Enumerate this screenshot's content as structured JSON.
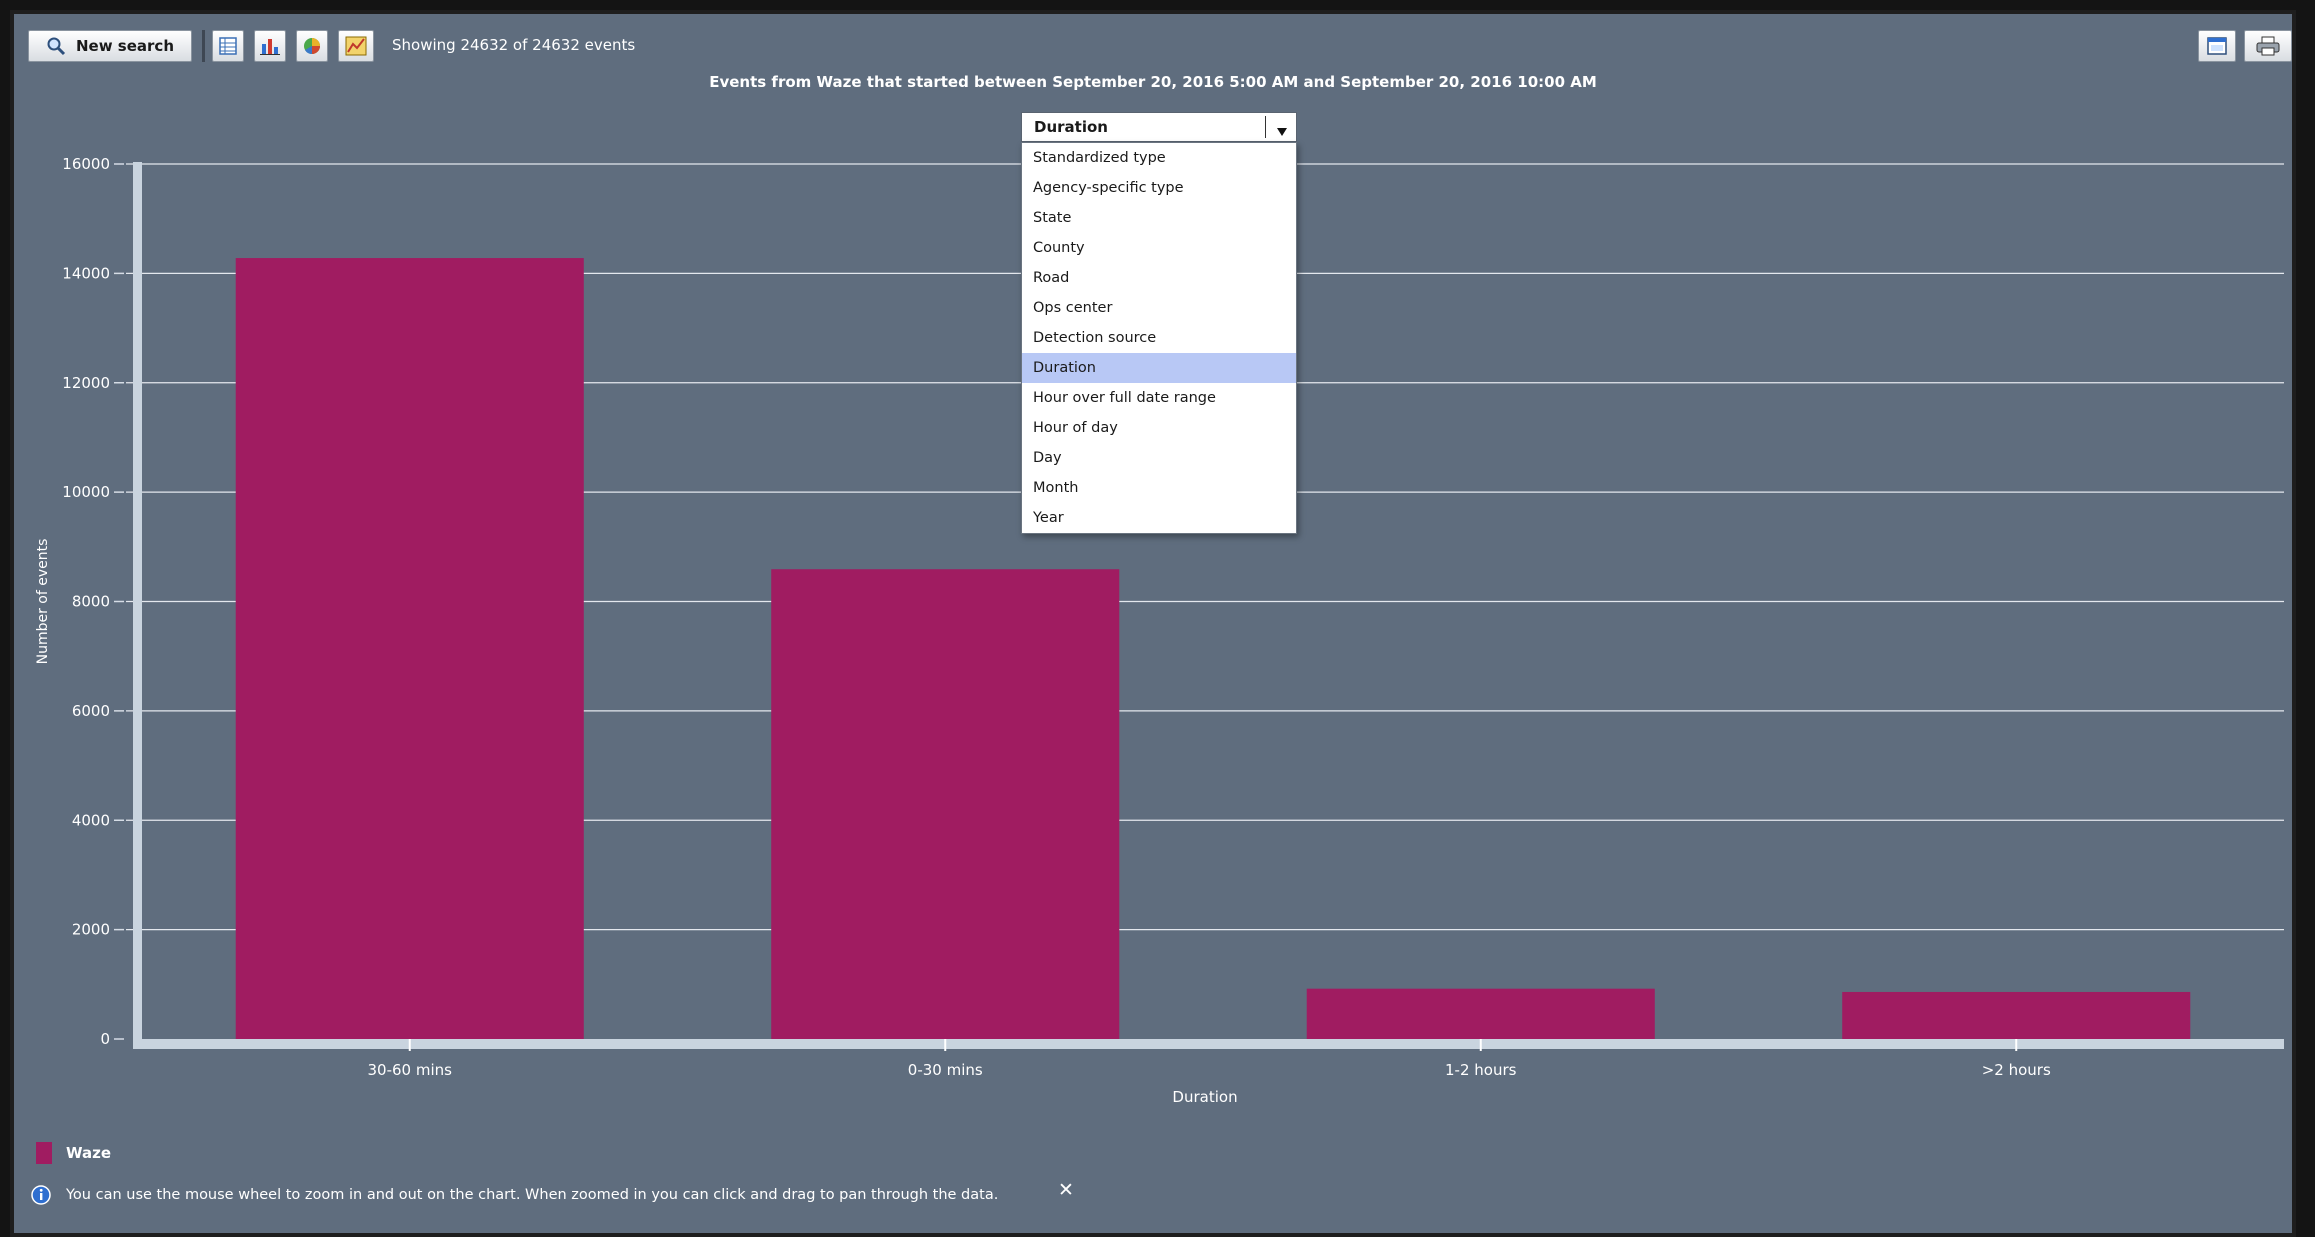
{
  "toolbar": {
    "new_search_label": "New search",
    "status": "Showing 24632 of 24632 events"
  },
  "title": "Events from Waze that started between September 20, 2016 5:00 AM and September 20, 2016 10:00 AM",
  "group_by": {
    "selected": "Duration",
    "options": [
      "Standardized type",
      "Agency-specific type",
      "State",
      "County",
      "Road",
      "Ops center",
      "Detection source",
      "Duration",
      "Hour over full date range",
      "Hour of day",
      "Day",
      "Month",
      "Year"
    ]
  },
  "colors": {
    "bar": "#a01c61",
    "background": "#5f6d7e",
    "menu_highlight": "#b8c8f5"
  },
  "chart_data": {
    "type": "bar",
    "categories": [
      "30-60 mins",
      "0-30 mins",
      "1-2 hours",
      ">2 hours"
    ],
    "series": [
      {
        "name": "Waze",
        "values": [
          14280,
          8590,
          920,
          860
        ]
      }
    ],
    "xlabel": "Duration",
    "ylabel": "Number of events",
    "ylim": [
      0,
      16000
    ],
    "yticks": [
      "0",
      "2000",
      "4000",
      "6000",
      "8000",
      "10000",
      "12000",
      "14000",
      "16000"
    ],
    "grid": true,
    "legend": "bottom-left"
  },
  "info_text": "You can use the mouse wheel to zoom in and out on the chart. When zoomed in you can click and drag to pan through the data."
}
